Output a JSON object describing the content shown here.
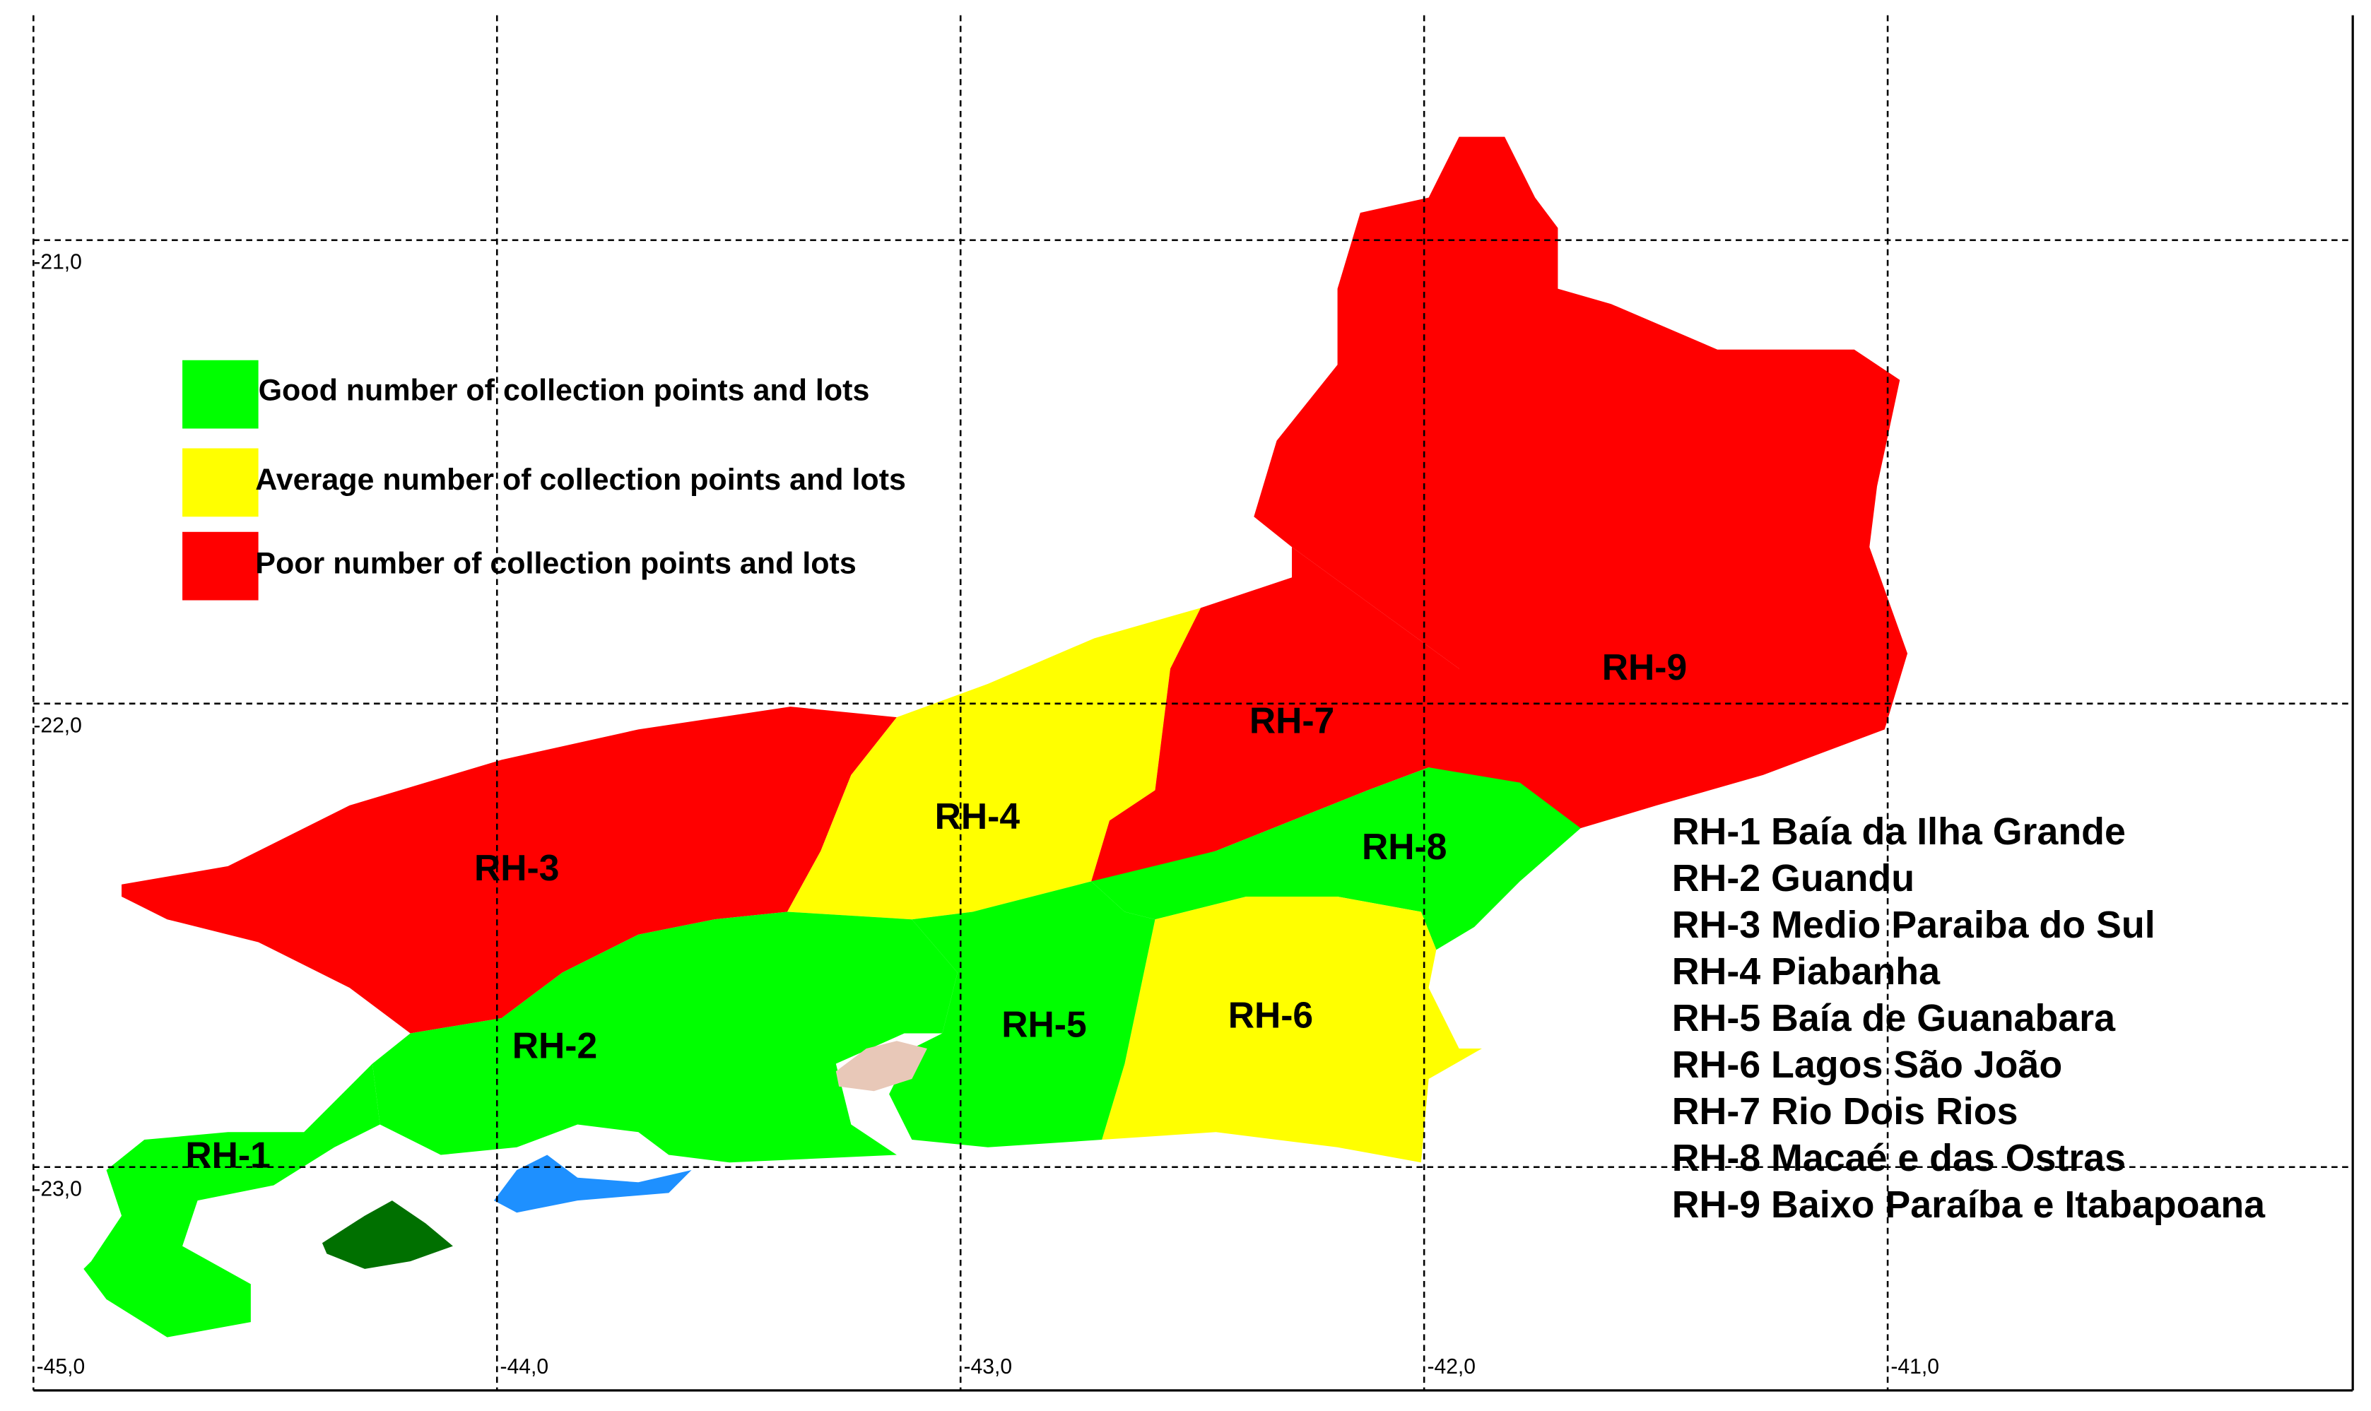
{
  "grid": {
    "longitudes": [
      "-45,0",
      "-44,0",
      "-43,0",
      "-42,0",
      "-41,0"
    ],
    "latitudes": [
      "-21,0",
      "-22,0",
      "-23,0"
    ]
  },
  "legend": [
    {
      "label": "Good number of collection points and lots",
      "color": "#00ff00"
    },
    {
      "label": "Average number of collection points and lots",
      "color": "#ffff00"
    },
    {
      "label": "Poor number of collection points and lots",
      "color": "#ff0000"
    }
  ],
  "regions": [
    {
      "label": "RH-1",
      "color": "#00ff00"
    },
    {
      "label": "RH-2",
      "color": "#00ff00"
    },
    {
      "label": "RH-3",
      "color": "#ff0000"
    },
    {
      "label": "RH-4",
      "color": "#ffff00"
    },
    {
      "label": "RH-5",
      "color": "#00ff00"
    },
    {
      "label": "RH-6",
      "color": "#ffff00"
    },
    {
      "label": "RH-7",
      "color": "#ff0000"
    },
    {
      "label": "RH-8",
      "color": "#00ff00"
    },
    {
      "label": "RH-9",
      "color": "#ff0000"
    }
  ],
  "region_names": [
    "RH-1 Baía da Ilha Grande",
    "RH-2 Guandu",
    "RH-3 Medio Paraiba do Sul",
    "RH-4 Piabanha",
    "RH-5 Baía de Guanabara",
    "RH-6 Lagos São João",
    "RH-7 Rio Dois Rios",
    "RH-8 Macaé e das Ostras",
    "RH-9 Baixo Paraíba e Itabapoana"
  ]
}
